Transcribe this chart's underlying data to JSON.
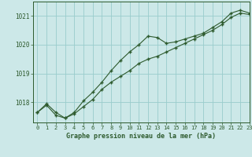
{
  "title": "Graphe pression niveau de la mer (hPa)",
  "bg_color": "#cce8e8",
  "grid_color": "#99cccc",
  "line_color": "#2d5a2d",
  "xlim": [
    -0.5,
    23
  ],
  "ylim": [
    1017.3,
    1021.5
  ],
  "yticks": [
    1018,
    1019,
    1020,
    1021
  ],
  "xticks": [
    0,
    1,
    2,
    3,
    4,
    5,
    6,
    7,
    8,
    9,
    10,
    11,
    12,
    13,
    14,
    15,
    16,
    17,
    18,
    19,
    20,
    21,
    22,
    23
  ],
  "series1_x": [
    0,
    1,
    2,
    3,
    4,
    5,
    6,
    7,
    8,
    9,
    10,
    11,
    12,
    13,
    14,
    15,
    16,
    17,
    18,
    19,
    20,
    21,
    22,
    23
  ],
  "series1_y": [
    1017.65,
    1017.95,
    1017.65,
    1017.45,
    1017.65,
    1018.05,
    1018.35,
    1018.7,
    1019.1,
    1019.45,
    1019.75,
    1020.0,
    1020.3,
    1020.25,
    1020.05,
    1020.1,
    1020.2,
    1020.3,
    1020.4,
    1020.6,
    1020.8,
    1021.1,
    1021.2,
    1021.1
  ],
  "series2_x": [
    0,
    1,
    2,
    3,
    4,
    5,
    6,
    7,
    8,
    9,
    10,
    11,
    12,
    13,
    14,
    15,
    16,
    17,
    18,
    19,
    20,
    21,
    22,
    23
  ],
  "series2_y": [
    1017.65,
    1017.9,
    1017.55,
    1017.45,
    1017.6,
    1017.85,
    1018.1,
    1018.45,
    1018.7,
    1018.9,
    1019.1,
    1019.35,
    1019.5,
    1019.6,
    1019.75,
    1019.9,
    1020.05,
    1020.2,
    1020.35,
    1020.5,
    1020.7,
    1020.95,
    1021.1,
    1021.05
  ]
}
